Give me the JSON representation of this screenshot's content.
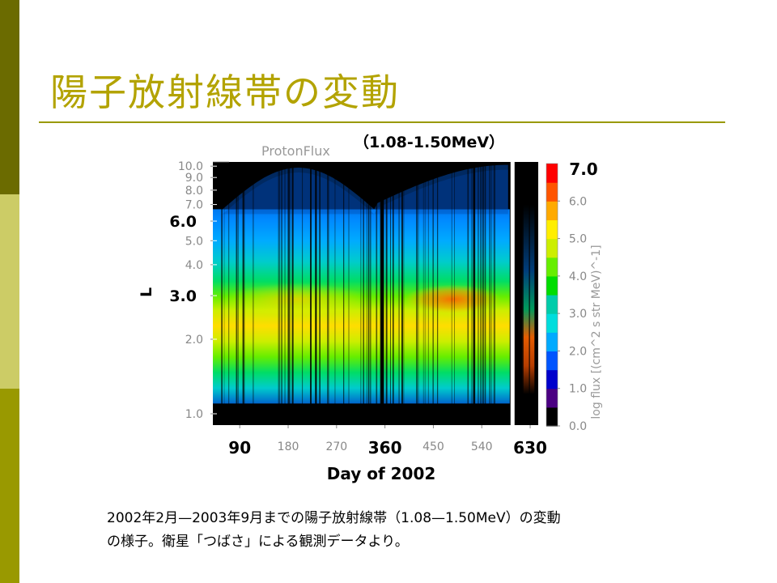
{
  "slide": {
    "title": "陽子放射線帯の変動",
    "caption_line1": "2002年2月—2003年9月までの陽子放射線帯（1.08—1.50MeV）の変動",
    "caption_line2": "の様子。衛星「つばさ」による観測データより。",
    "colors": {
      "accent": "#999900",
      "title": "#b3a300",
      "bar_dark": "#6b6b00",
      "bar_light": "#cccc66"
    }
  },
  "chart_data": {
    "type": "heatmap",
    "plot_title": "ProtonFlux",
    "energy_label": "（1.08-1.50MeV）",
    "xlabel": "Day of 2002",
    "ylabel": "L",
    "x_ticks": [
      "90",
      "180",
      "270",
      "360",
      "450",
      "540",
      "630"
    ],
    "x_ticks_bold": [
      "90",
      "360",
      "630"
    ],
    "x_tick_values": [
      90,
      180,
      270,
      360,
      450,
      540,
      630
    ],
    "xlim": [
      40,
      645
    ],
    "y_ticks": [
      "1.0",
      "2.0",
      "3.0",
      "4.0",
      "5.0",
      "6.0",
      "7.0",
      "8.0",
      "9.0",
      "10.0"
    ],
    "y_ticks_bold": [
      "3.0",
      "6.0"
    ],
    "y_tick_values": [
      1,
      2,
      3,
      4,
      5,
      6,
      7,
      8,
      9,
      10
    ],
    "ylim": [
      0.9,
      10.4
    ],
    "y_scale": "log",
    "colorbar": {
      "label": "log flux [(cm^2 s str MeV)^-1]",
      "ticks": [
        "0.0",
        "1.0",
        "2.0",
        "3.0",
        "4.0",
        "5.0",
        "6.0"
      ],
      "tick_values": [
        0,
        1,
        2,
        3,
        4,
        5,
        6
      ],
      "max_label": "7.0",
      "range": [
        0,
        7
      ],
      "colors": [
        "#000000",
        "#4b0082",
        "#0000cc",
        "#0055ff",
        "#00aaff",
        "#00dddd",
        "#00ccaa",
        "#00dd00",
        "#66ee00",
        "#ccee00",
        "#ffee00",
        "#ffaa00",
        "#ff5500",
        "#ff0000"
      ]
    },
    "data_gaps": [
      355,
      595
    ],
    "summary": {
      "peak_L": 2.9,
      "peak_log_flux": 6.3,
      "band_edge_L": 6.7,
      "depleted_region_center_day": 340,
      "depleted_region_min_L": 7.0
    }
  }
}
